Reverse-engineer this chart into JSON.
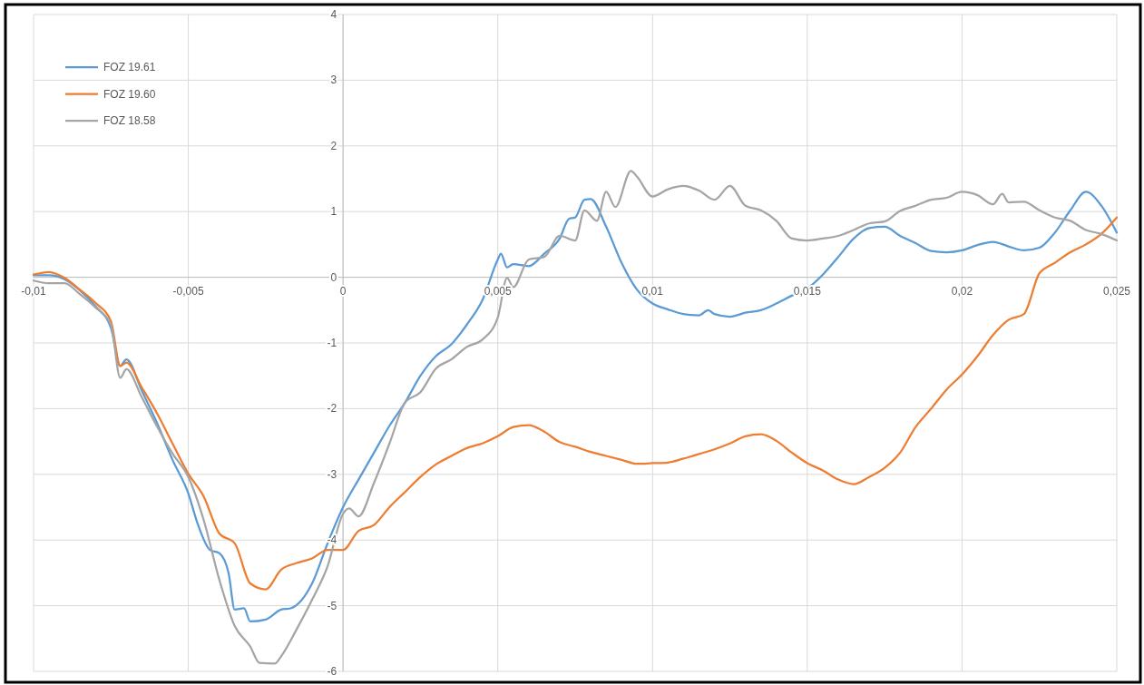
{
  "chart_data": {
    "type": "line",
    "xlim": [
      -0.01,
      0.025
    ],
    "xticks": [
      {
        "value": -0.01,
        "label": "-0,01"
      },
      {
        "value": -0.005,
        "label": "-0,005"
      },
      0,
      {
        "value": 0.005,
        "label": "0,005"
      },
      {
        "value": 0.01,
        "label": "0,01"
      },
      {
        "value": 0.015,
        "label": "0,015"
      },
      {
        "value": 0.02,
        "label": "0,02"
      },
      {
        "value": 0.025,
        "label": "0,025"
      }
    ],
    "ylim": [
      -6,
      4
    ],
    "yticks": [
      -6,
      -5,
      -4,
      -3,
      -2,
      -1,
      0,
      1,
      2,
      3,
      4
    ],
    "grid": true,
    "legend": "top left",
    "marker": "none",
    "line_style": "solid",
    "series": [
      {
        "name": "FOZ 19.61",
        "color": "#5b9bd5",
        "x": [
          -0.01,
          -0.0095,
          -0.009,
          -0.0085,
          -0.008,
          -0.0075,
          -0.0072,
          -0.007,
          -0.0065,
          -0.006,
          -0.0055,
          -0.005,
          -0.0047,
          -0.0043,
          -0.004,
          -0.0037,
          -0.0035,
          -0.0032,
          -0.003,
          -0.0025,
          -0.002,
          -0.0017,
          -0.001,
          -0.0005,
          0,
          0.0005,
          0.001,
          0.0015,
          0.002,
          0.0025,
          0.003,
          0.0035,
          0.004,
          0.0045,
          0.005,
          0.0051,
          0.0053,
          0.0055,
          0.006,
          0.0065,
          0.007,
          0.0073,
          0.0075,
          0.0078,
          0.008,
          0.0085,
          0.009,
          0.0095,
          0.01,
          0.0105,
          0.011,
          0.0115,
          0.0118,
          0.012,
          0.0125,
          0.013,
          0.0135,
          0.014,
          0.0145,
          0.015,
          0.0155,
          0.016,
          0.0165,
          0.017,
          0.0175,
          0.018,
          0.0185,
          0.019,
          0.0195,
          0.02,
          0.0205,
          0.021,
          0.0215,
          0.022,
          0.0225,
          0.023,
          0.0235,
          0.024,
          0.0245,
          0.025
        ],
        "values": [
          0.03,
          0.03,
          -0.03,
          -0.2,
          -0.44,
          -0.77,
          -1.35,
          -1.25,
          -1.73,
          -2.23,
          -2.79,
          -3.29,
          -3.75,
          -4.15,
          -4.2,
          -4.5,
          -5.06,
          -5.04,
          -5.24,
          -5.21,
          -5.06,
          -5.04,
          -4.66,
          -4.05,
          -3.5,
          -3.08,
          -2.67,
          -2.26,
          -1.91,
          -1.5,
          -1.2,
          -1.02,
          -0.72,
          -0.35,
          0.27,
          0.36,
          0.15,
          0.2,
          0.17,
          0.36,
          0.59,
          0.89,
          0.91,
          1.18,
          1.19,
          0.77,
          0.22,
          -0.19,
          -0.4,
          -0.49,
          -0.56,
          -0.58,
          -0.5,
          -0.56,
          -0.6,
          -0.54,
          -0.5,
          -0.4,
          -0.28,
          -0.17,
          0.04,
          0.31,
          0.59,
          0.75,
          0.77,
          0.63,
          0.52,
          0.4,
          0.38,
          0.41,
          0.49,
          0.54,
          0.47,
          0.41,
          0.45,
          0.68,
          1.02,
          1.3,
          1.09,
          0.68
        ]
      },
      {
        "name": "FOZ 19.60",
        "color": "#ed7d31",
        "x": [
          -0.01,
          -0.0095,
          -0.009,
          -0.0085,
          -0.008,
          -0.0075,
          -0.0072,
          -0.007,
          -0.0065,
          -0.006,
          -0.0055,
          -0.005,
          -0.0045,
          -0.004,
          -0.0035,
          -0.003,
          -0.0025,
          -0.002,
          -0.0015,
          -0.001,
          -0.0005,
          0,
          0.0005,
          0.001,
          0.0015,
          0.002,
          0.0025,
          0.003,
          0.0035,
          0.004,
          0.0045,
          0.005,
          0.0055,
          0.006,
          0.0065,
          0.007,
          0.0075,
          0.008,
          0.0085,
          0.009,
          0.0095,
          0.01,
          0.0105,
          0.011,
          0.0115,
          0.012,
          0.0125,
          0.013,
          0.0135,
          0.014,
          0.0145,
          0.015,
          0.0155,
          0.016,
          0.0165,
          0.017,
          0.0175,
          0.018,
          0.0185,
          0.019,
          0.0195,
          0.02,
          0.0205,
          0.021,
          0.0215,
          0.022,
          0.0225,
          0.023,
          0.0235,
          0.024,
          0.0245,
          0.025
        ],
        "values": [
          0.04,
          0.08,
          -0.01,
          -0.19,
          -0.39,
          -0.67,
          -1.35,
          -1.3,
          -1.68,
          -2.08,
          -2.54,
          -2.99,
          -3.34,
          -3.9,
          -4.05,
          -4.66,
          -4.75,
          -4.45,
          -4.35,
          -4.28,
          -4.15,
          -4.15,
          -3.86,
          -3.77,
          -3.5,
          -3.27,
          -3.04,
          -2.85,
          -2.72,
          -2.6,
          -2.53,
          -2.42,
          -2.28,
          -2.25,
          -2.35,
          -2.51,
          -2.58,
          -2.66,
          -2.72,
          -2.78,
          -2.84,
          -2.83,
          -2.82,
          -2.76,
          -2.69,
          -2.62,
          -2.53,
          -2.42,
          -2.39,
          -2.49,
          -2.67,
          -2.83,
          -2.94,
          -3.08,
          -3.15,
          -3.04,
          -2.9,
          -2.67,
          -2.28,
          -2.0,
          -1.71,
          -1.48,
          -1.2,
          -0.88,
          -0.65,
          -0.56,
          0.06,
          0.22,
          0.38,
          0.5,
          0.66,
          0.91
        ]
      },
      {
        "name": "FOZ 18.58",
        "color": "#a5a5a5",
        "x": [
          -0.01,
          -0.0095,
          -0.009,
          -0.0085,
          -0.008,
          -0.0075,
          -0.0072,
          -0.007,
          -0.0065,
          -0.006,
          -0.0055,
          -0.005,
          -0.0045,
          -0.004,
          -0.0035,
          -0.003,
          -0.0027,
          -0.0022,
          -0.002,
          -0.0015,
          -0.001,
          -0.0005,
          0,
          0.0002,
          0.0005,
          0.001,
          0.0015,
          0.002,
          0.0025,
          0.003,
          0.0035,
          0.004,
          0.0045,
          0.005,
          0.0053,
          0.0055,
          0.006,
          0.0065,
          0.007,
          0.0075,
          0.0078,
          0.0082,
          0.0085,
          0.0088,
          0.0093,
          0.0095,
          0.01,
          0.0105,
          0.011,
          0.0115,
          0.012,
          0.0125,
          0.013,
          0.0135,
          0.014,
          0.0145,
          0.015,
          0.0155,
          0.016,
          0.0165,
          0.017,
          0.0175,
          0.018,
          0.0185,
          0.019,
          0.0195,
          0.02,
          0.0205,
          0.021,
          0.0213,
          0.0215,
          0.022,
          0.0225,
          0.023,
          0.0235,
          0.024,
          0.0245,
          0.025
        ],
        "values": [
          -0.05,
          -0.09,
          -0.09,
          -0.26,
          -0.46,
          -0.72,
          -1.53,
          -1.4,
          -1.83,
          -2.28,
          -2.69,
          -3.04,
          -3.7,
          -4.6,
          -5.31,
          -5.62,
          -5.87,
          -5.88,
          -5.77,
          -5.36,
          -4.91,
          -4.4,
          -3.6,
          -3.52,
          -3.64,
          -3.13,
          -2.53,
          -1.91,
          -1.75,
          -1.39,
          -1.25,
          -1.06,
          -0.95,
          -0.61,
          -0.01,
          -0.15,
          0.27,
          0.31,
          0.63,
          0.56,
          1.02,
          0.86,
          1.3,
          1.07,
          1.62,
          1.53,
          1.23,
          1.34,
          1.39,
          1.32,
          1.18,
          1.39,
          1.09,
          1.02,
          0.86,
          0.59,
          0.56,
          0.59,
          0.63,
          0.72,
          0.82,
          0.85,
          1.01,
          1.09,
          1.18,
          1.21,
          1.3,
          1.25,
          1.11,
          1.27,
          1.14,
          1.15,
          1.02,
          0.91,
          0.86,
          0.72,
          0.66,
          0.56
        ]
      }
    ]
  }
}
